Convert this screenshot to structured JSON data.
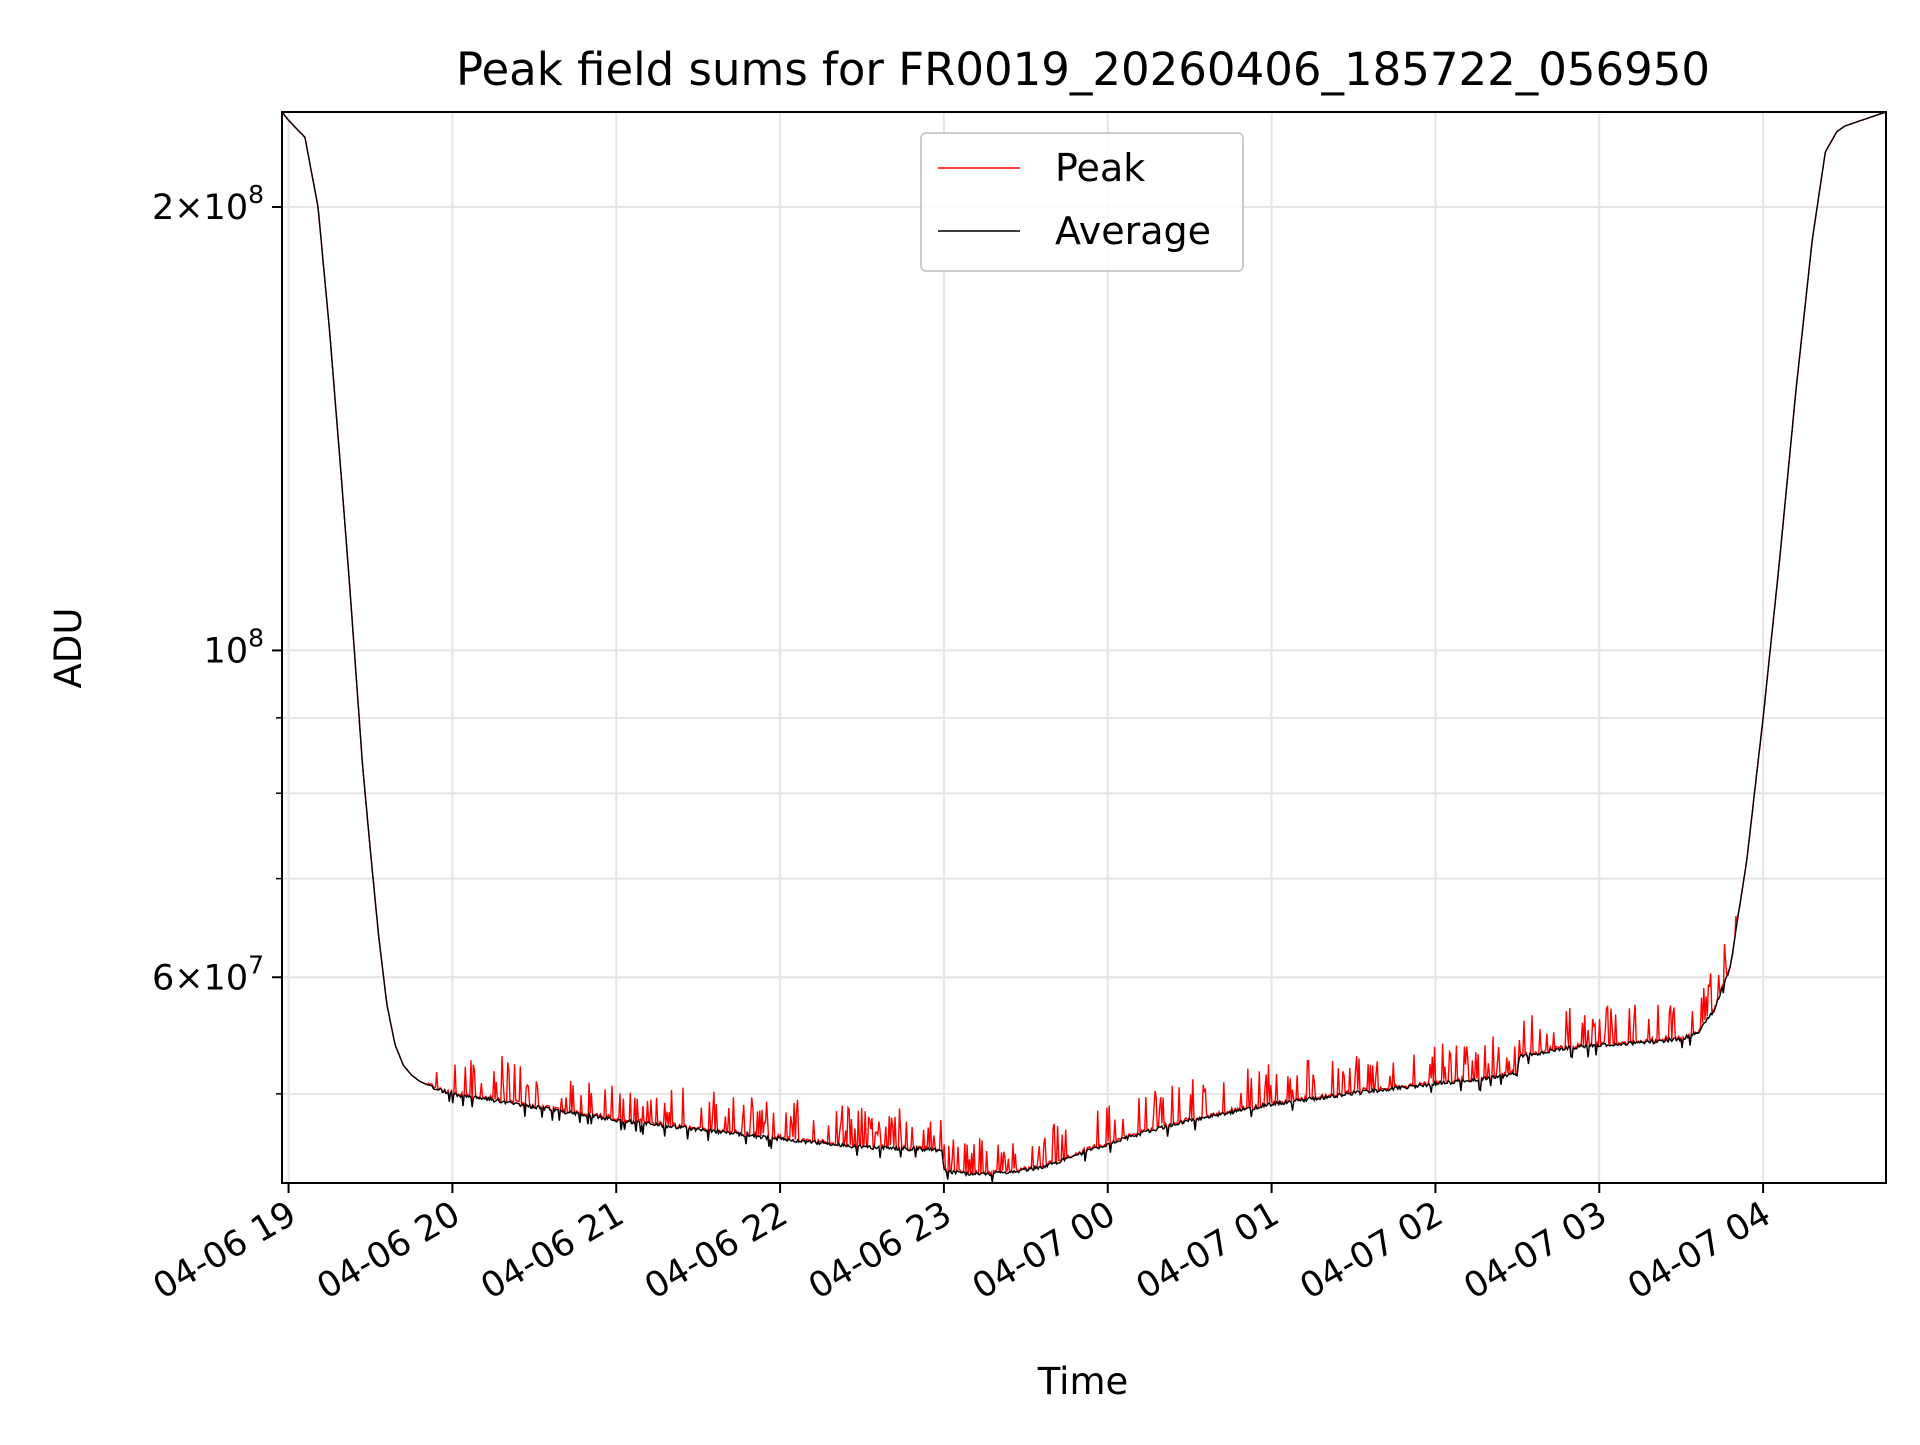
{
  "chart_data": {
    "type": "line",
    "title": "Peak field sums for FR0019_20260406_185722_056950",
    "xlabel": "Time",
    "ylabel": "ADU",
    "yscale": "log",
    "ylim": [
      43500000,
      232000000
    ],
    "xlim_hours": [
      -0.04,
      9.75
    ],
    "grid": true,
    "legend": {
      "placement": "upper-center",
      "entries": [
        "Peak",
        "Average"
      ]
    },
    "colors": {
      "Peak": "#ff0000",
      "Average": "#000000",
      "grid": "#e5e5e5",
      "frame": "#000000",
      "legend_border": "#cccccc"
    },
    "x_ticks": [
      {
        "t": 0,
        "label": "04-06 19"
      },
      {
        "t": 1,
        "label": "04-06 20"
      },
      {
        "t": 2,
        "label": "04-06 21"
      },
      {
        "t": 3,
        "label": "04-06 22"
      },
      {
        "t": 4,
        "label": "04-06 23"
      },
      {
        "t": 5,
        "label": "04-07 00"
      },
      {
        "t": 6,
        "label": "04-07 01"
      },
      {
        "t": 7,
        "label": "04-07 02"
      },
      {
        "t": 8,
        "label": "04-07 03"
      },
      {
        "t": 9,
        "label": "04-07 04"
      }
    ],
    "y_major_ticks": [
      {
        "v": 60000000,
        "base": "6",
        "exp": "7"
      },
      {
        "v": 100000000,
        "base": "",
        "exp": "8"
      },
      {
        "v": 200000000,
        "base": "2",
        "exp": "8"
      }
    ],
    "y_minor_ticks": [
      50000000,
      60000000,
      70000000,
      80000000,
      90000000,
      200000000
    ],
    "times_note": "hours after 04-06 19:00",
    "series": [
      {
        "name": "Average",
        "x": [
          -0.04,
          0.0,
          0.1,
          0.18,
          0.25,
          0.32,
          0.38,
          0.45,
          0.5,
          0.55,
          0.6,
          0.65,
          0.7,
          0.75,
          0.8,
          0.85,
          0.9,
          0.95,
          1.0,
          1.1,
          1.2,
          1.5,
          2.0,
          2.5,
          3.0,
          3.5,
          3.99,
          4.0,
          4.2,
          4.4,
          4.6,
          4.8,
          5.0,
          5.2,
          5.5,
          5.8,
          6.0,
          6.3,
          6.6,
          7.0,
          7.3,
          7.5,
          7.51,
          7.8,
          8.0,
          8.3,
          8.5,
          8.6,
          8.7,
          8.8,
          8.9,
          9.0,
          9.1,
          9.2,
          9.3,
          9.38,
          9.45,
          9.5,
          9.6,
          9.75
        ],
        "y": [
          232000000,
          229000000,
          223000000,
          200000000,
          165000000,
          132000000,
          108000000,
          84000000,
          73000000,
          64000000,
          57500000,
          54000000,
          52300000,
          51500000,
          51000000,
          50700000,
          50400000,
          50200000,
          50000000,
          49800000,
          49600000,
          49000000,
          48000000,
          47300000,
          46600000,
          46000000,
          45800000,
          44300000,
          44100000,
          44200000,
          44600000,
          45400000,
          46200000,
          47000000,
          48000000,
          48700000,
          49200000,
          49700000,
          50200000,
          50800000,
          51200000,
          51600000,
          53000000,
          53700000,
          54000000,
          54200000,
          54500000,
          55000000,
          57000000,
          61000000,
          72000000,
          90000000,
          115000000,
          150000000,
          190000000,
          218000000,
          225000000,
          227000000,
          229000000,
          232000000
        ]
      },
      {
        "name": "Peak",
        "note": "Peak closely tracks Average with frequent brief upward spikes of roughly 2–6% (largest ~ +8% near 20:30)",
        "x": [
          -0.04,
          0.5,
          0.9,
          1.28,
          1.3,
          2.0,
          2.98,
          3.0,
          3.5,
          4.0,
          4.4,
          5.0,
          5.5,
          6.0,
          6.5,
          7.0,
          7.5,
          8.0,
          8.6,
          8.9,
          9.2,
          9.5,
          9.75
        ],
        "y": [
          232000000,
          73000000,
          50400000,
          49500000,
          53500000,
          48000000,
          46800000,
          48000000,
          46500000,
          46100000,
          45000000,
          47500000,
          49600000,
          51000000,
          52300000,
          53300000,
          55200000,
          55500000,
          56500000,
          74000000,
          152000000,
          227000000,
          232000000
        ]
      }
    ]
  }
}
